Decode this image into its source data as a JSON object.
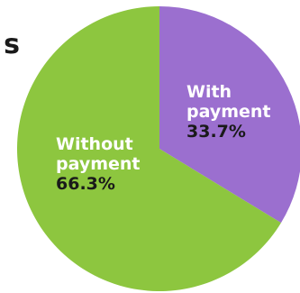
{
  "title_fragment": "s",
  "chart_data": {
    "type": "pie",
    "start_angle_deg": 0,
    "direction": "clockwise",
    "slices": [
      {
        "label_lines": [
          "With",
          "payment"
        ],
        "value": 33.7,
        "value_label": "33.7%",
        "color": "#9b6fcf"
      },
      {
        "label_lines": [
          "Without",
          "payment"
        ],
        "value": 66.3,
        "value_label": "66.3%",
        "color": "#8dc63f"
      }
    ]
  }
}
